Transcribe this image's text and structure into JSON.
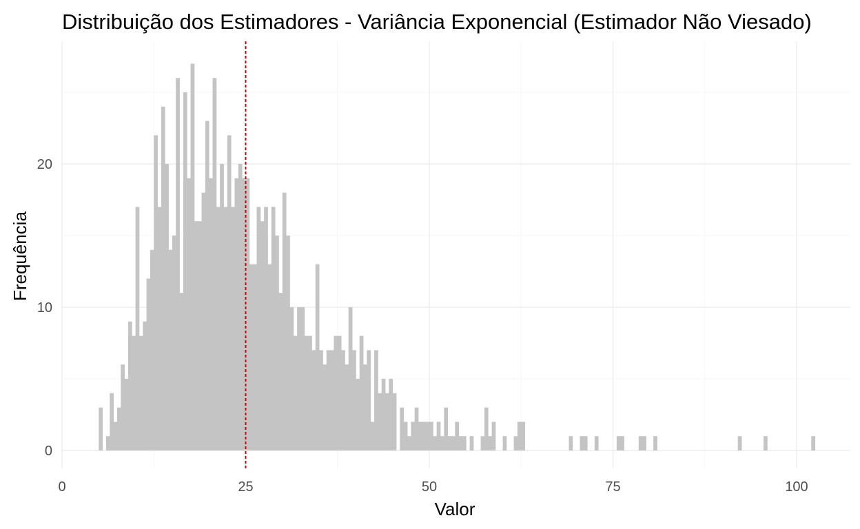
{
  "chart_data": {
    "type": "bar",
    "title": "Distribuição dos Estimadores - Variância Exponencial (Estimador Não Viesado)",
    "xlabel": "Valor",
    "ylabel": "Frequência",
    "xlim": [
      0,
      107
    ],
    "ylim": [
      -1.3,
      28
    ],
    "x_ticks": [
      0,
      25,
      50,
      75,
      100
    ],
    "y_ticks": [
      0,
      10,
      20
    ],
    "grid": true,
    "legend": "none",
    "bar_color": "#c4c4c4",
    "reference_line": {
      "x": 25,
      "color": "#cc0000",
      "style": "dashed"
    },
    "bin_width": 0.5,
    "bins": [
      [
        5.0,
        3
      ],
      [
        5.5,
        0
      ],
      [
        6.0,
        1
      ],
      [
        6.5,
        4
      ],
      [
        7.0,
        2
      ],
      [
        7.5,
        3
      ],
      [
        8.0,
        6
      ],
      [
        8.5,
        5
      ],
      [
        9.0,
        9
      ],
      [
        9.5,
        8
      ],
      [
        10.0,
        17
      ],
      [
        10.5,
        8
      ],
      [
        11.0,
        9
      ],
      [
        11.5,
        12
      ],
      [
        12.0,
        14
      ],
      [
        12.5,
        22
      ],
      [
        13.0,
        17
      ],
      [
        13.5,
        24
      ],
      [
        14.0,
        20
      ],
      [
        14.5,
        14
      ],
      [
        15.0,
        15
      ],
      [
        15.5,
        26
      ],
      [
        16.0,
        11
      ],
      [
        16.5,
        25
      ],
      [
        17.0,
        19
      ],
      [
        17.5,
        27
      ],
      [
        18.0,
        16
      ],
      [
        18.5,
        16
      ],
      [
        19.0,
        18
      ],
      [
        19.5,
        23
      ],
      [
        20.0,
        19
      ],
      [
        20.5,
        26
      ],
      [
        21.0,
        17
      ],
      [
        21.5,
        20
      ],
      [
        22.0,
        17
      ],
      [
        22.5,
        22
      ],
      [
        23.0,
        17
      ],
      [
        23.5,
        19
      ],
      [
        24.0,
        20
      ],
      [
        24.5,
        19
      ],
      [
        25.0,
        19
      ],
      [
        25.5,
        13
      ],
      [
        26.0,
        13
      ],
      [
        26.5,
        17
      ],
      [
        27.0,
        16
      ],
      [
        27.5,
        17
      ],
      [
        28.0,
        13
      ],
      [
        28.5,
        17
      ],
      [
        29.0,
        15
      ],
      [
        29.5,
        11
      ],
      [
        30.0,
        18
      ],
      [
        30.5,
        15
      ],
      [
        31.0,
        10
      ],
      [
        31.5,
        8
      ],
      [
        32.0,
        10
      ],
      [
        32.5,
        10
      ],
      [
        33.0,
        8
      ],
      [
        33.5,
        8
      ],
      [
        34.0,
        7
      ],
      [
        34.5,
        13
      ],
      [
        35.0,
        7
      ],
      [
        35.5,
        6
      ],
      [
        36.0,
        7
      ],
      [
        36.5,
        7
      ],
      [
        37.0,
        8
      ],
      [
        37.5,
        8
      ],
      [
        38.0,
        7
      ],
      [
        38.5,
        6
      ],
      [
        39.0,
        10
      ],
      [
        39.5,
        7
      ],
      [
        40.0,
        5
      ],
      [
        40.5,
        8
      ],
      [
        41.0,
        6
      ],
      [
        41.5,
        7
      ],
      [
        42.0,
        2
      ],
      [
        42.5,
        7
      ],
      [
        43.0,
        4
      ],
      [
        43.5,
        5
      ],
      [
        44.0,
        4
      ],
      [
        44.5,
        5
      ],
      [
        45.0,
        4
      ],
      [
        45.5,
        0
      ],
      [
        46.0,
        3
      ],
      [
        46.5,
        2
      ],
      [
        47.0,
        1
      ],
      [
        47.5,
        2
      ],
      [
        48.0,
        3
      ],
      [
        48.5,
        2
      ],
      [
        49.0,
        2
      ],
      [
        49.5,
        2
      ],
      [
        50.0,
        2
      ],
      [
        50.5,
        1
      ],
      [
        51.0,
        2
      ],
      [
        51.5,
        1
      ],
      [
        52.0,
        3
      ],
      [
        52.5,
        1
      ],
      [
        53.0,
        1
      ],
      [
        53.5,
        2
      ],
      [
        54.0,
        1
      ],
      [
        54.5,
        1
      ],
      [
        55.0,
        0
      ],
      [
        55.5,
        1
      ],
      [
        56.0,
        0
      ],
      [
        56.5,
        0
      ],
      [
        57.0,
        1
      ],
      [
        57.5,
        3
      ],
      [
        58.0,
        1
      ],
      [
        58.5,
        2
      ],
      [
        59.0,
        0
      ],
      [
        59.5,
        0
      ],
      [
        60.0,
        1
      ],
      [
        60.5,
        0
      ],
      [
        61.0,
        0
      ],
      [
        61.5,
        1
      ],
      [
        62.0,
        2
      ],
      [
        62.5,
        2
      ],
      [
        69.0,
        1
      ],
      [
        70.5,
        1
      ],
      [
        71.0,
        1
      ],
      [
        72.5,
        1
      ],
      [
        75.5,
        1
      ],
      [
        76.0,
        1
      ],
      [
        78.5,
        1
      ],
      [
        79.0,
        1
      ],
      [
        80.5,
        1
      ],
      [
        92.0,
        1
      ],
      [
        95.5,
        1
      ],
      [
        102.0,
        1
      ]
    ]
  }
}
